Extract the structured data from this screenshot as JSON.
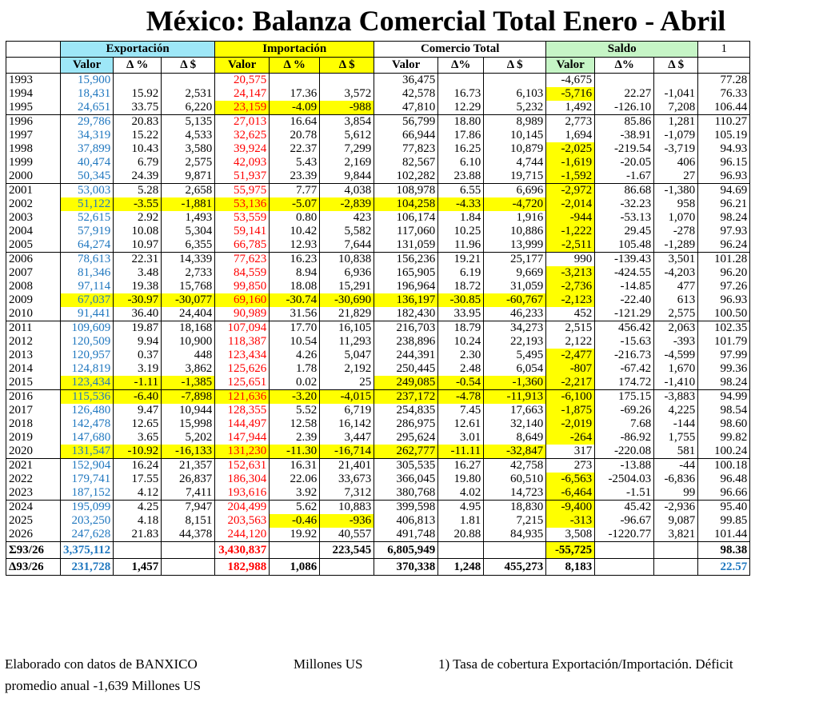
{
  "title": "México: Balanza Comercial Total Enero - Abril",
  "headers": {
    "group_exp": "Exportación",
    "group_imp": "Importación",
    "group_com": "Comercio Total",
    "group_sal": "Saldo",
    "note_col": "1",
    "sub": [
      "Valor",
      "Δ %",
      "Δ $",
      "Valor",
      "Δ %",
      "Δ $",
      "Valor",
      "Δ%",
      "Δ $",
      "Valor",
      "Δ%",
      "Δ $"
    ]
  },
  "rows": [
    [
      "1993",
      "15,900",
      "",
      "",
      "20,575",
      "",
      "",
      "36,475",
      "",
      "",
      "-4,675",
      "",
      "",
      "77.28"
    ],
    [
      "1994",
      "18,431",
      "15.92",
      "2,531",
      "24,147",
      "17.36",
      "3,572",
      "42,578",
      "16.73",
      "6,103",
      "-5,716",
      "22.27",
      "-1,041",
      "76.33"
    ],
    [
      "1995",
      "24,651",
      "33.75",
      "6,220",
      "23,159",
      "-4.09",
      "-988",
      "47,810",
      "12.29",
      "5,232",
      "1,492",
      "-126.10",
      "7,208",
      "106.44"
    ],
    [
      "1996",
      "29,786",
      "20.83",
      "5,135",
      "27,013",
      "16.64",
      "3,854",
      "56,799",
      "18.80",
      "8,989",
      "2,773",
      "85.86",
      "1,281",
      "110.27"
    ],
    [
      "1997",
      "34,319",
      "15.22",
      "4,533",
      "32,625",
      "20.78",
      "5,612",
      "66,944",
      "17.86",
      "10,145",
      "1,694",
      "-38.91",
      "-1,079",
      "105.19"
    ],
    [
      "1998",
      "37,899",
      "10.43",
      "3,580",
      "39,924",
      "22.37",
      "7,299",
      "77,823",
      "16.25",
      "10,879",
      "-2,025",
      "-219.54",
      "-3,719",
      "94.93"
    ],
    [
      "1999",
      "40,474",
      "6.79",
      "2,575",
      "42,093",
      "5.43",
      "2,169",
      "82,567",
      "6.10",
      "4,744",
      "-1,619",
      "-20.05",
      "406",
      "96.15"
    ],
    [
      "2000",
      "50,345",
      "24.39",
      "9,871",
      "51,937",
      "23.39",
      "9,844",
      "102,282",
      "23.88",
      "19,715",
      "-1,592",
      "-1.67",
      "27",
      "96.93"
    ],
    [
      "2001",
      "53,003",
      "5.28",
      "2,658",
      "55,975",
      "7.77",
      "4,038",
      "108,978",
      "6.55",
      "6,696",
      "-2,972",
      "86.68",
      "-1,380",
      "94.69"
    ],
    [
      "2002",
      "51,122",
      "-3.55",
      "-1,881",
      "53,136",
      "-5.07",
      "-2,839",
      "104,258",
      "-4.33",
      "-4,720",
      "-2,014",
      "-32.23",
      "958",
      "96.21"
    ],
    [
      "2003",
      "52,615",
      "2.92",
      "1,493",
      "53,559",
      "0.80",
      "423",
      "106,174",
      "1.84",
      "1,916",
      "-944",
      "-53.13",
      "1,070",
      "98.24"
    ],
    [
      "2004",
      "57,919",
      "10.08",
      "5,304",
      "59,141",
      "10.42",
      "5,582",
      "117,060",
      "10.25",
      "10,886",
      "-1,222",
      "29.45",
      "-278",
      "97.93"
    ],
    [
      "2005",
      "64,274",
      "10.97",
      "6,355",
      "66,785",
      "12.93",
      "7,644",
      "131,059",
      "11.96",
      "13,999",
      "-2,511",
      "105.48",
      "-1,289",
      "96.24"
    ],
    [
      "2006",
      "78,613",
      "22.31",
      "14,339",
      "77,623",
      "16.23",
      "10,838",
      "156,236",
      "19.21",
      "25,177",
      "990",
      "-139.43",
      "3,501",
      "101.28"
    ],
    [
      "2007",
      "81,346",
      "3.48",
      "2,733",
      "84,559",
      "8.94",
      "6,936",
      "165,905",
      "6.19",
      "9,669",
      "-3,213",
      "-424.55",
      "-4,203",
      "96.20"
    ],
    [
      "2008",
      "97,114",
      "19.38",
      "15,768",
      "99,850",
      "18.08",
      "15,291",
      "196,964",
      "18.72",
      "31,059",
      "-2,736",
      "-14.85",
      "477",
      "97.26"
    ],
    [
      "2009",
      "67,037",
      "-30.97",
      "-30,077",
      "69,160",
      "-30.74",
      "-30,690",
      "136,197",
      "-30.85",
      "-60,767",
      "-2,123",
      "-22.40",
      "613",
      "96.93"
    ],
    [
      "2010",
      "91,441",
      "36.40",
      "24,404",
      "90,989",
      "31.56",
      "21,829",
      "182,430",
      "33.95",
      "46,233",
      "452",
      "-121.29",
      "2,575",
      "100.50"
    ],
    [
      "2011",
      "109,609",
      "19.87",
      "18,168",
      "107,094",
      "17.70",
      "16,105",
      "216,703",
      "18.79",
      "34,273",
      "2,515",
      "456.42",
      "2,063",
      "102.35"
    ],
    [
      "2012",
      "120,509",
      "9.94",
      "10,900",
      "118,387",
      "10.54",
      "11,293",
      "238,896",
      "10.24",
      "22,193",
      "2,122",
      "-15.63",
      "-393",
      "101.79"
    ],
    [
      "2013",
      "120,957",
      "0.37",
      "448",
      "123,434",
      "4.26",
      "5,047",
      "244,391",
      "2.30",
      "5,495",
      "-2,477",
      "-216.73",
      "-4,599",
      "97.99"
    ],
    [
      "2014",
      "124,819",
      "3.19",
      "3,862",
      "125,626",
      "1.78",
      "2,192",
      "250,445",
      "2.48",
      "6,054",
      "-807",
      "-67.42",
      "1,670",
      "99.36"
    ],
    [
      "2015",
      "123,434",
      "-1.11",
      "-1,385",
      "125,651",
      "0.02",
      "25",
      "249,085",
      "-0.54",
      "-1,360",
      "-2,217",
      "174.72",
      "-1,410",
      "98.24"
    ],
    [
      "2016",
      "115,536",
      "-6.40",
      "-7,898",
      "121,636",
      "-3.20",
      "-4,015",
      "237,172",
      "-4.78",
      "-11,913",
      "-6,100",
      "175.15",
      "-3,883",
      "94.99"
    ],
    [
      "2017",
      "126,480",
      "9.47",
      "10,944",
      "128,355",
      "5.52",
      "6,719",
      "254,835",
      "7.45",
      "17,663",
      "-1,875",
      "-69.26",
      "4,225",
      "98.54"
    ],
    [
      "2018",
      "142,478",
      "12.65",
      "15,998",
      "144,497",
      "12.58",
      "16,142",
      "286,975",
      "12.61",
      "32,140",
      "-2,019",
      "7.68",
      "-144",
      "98.60"
    ],
    [
      "2019",
      "147,680",
      "3.65",
      "5,202",
      "147,944",
      "2.39",
      "3,447",
      "295,624",
      "3.01",
      "8,649",
      "-264",
      "-86.92",
      "1,755",
      "99.82"
    ],
    [
      "2020",
      "131,547",
      "-10.92",
      "-16,133",
      "131,230",
      "-11.30",
      "-16,714",
      "262,777",
      "-11.11",
      "-32,847",
      "317",
      "-220.08",
      "581",
      "100.24"
    ],
    [
      "2021",
      "152,904",
      "16.24",
      "21,357",
      "152,631",
      "16.31",
      "21,401",
      "305,535",
      "16.27",
      "42,758",
      "273",
      "-13.88",
      "-44",
      "100.18"
    ],
    [
      "2022",
      "179,741",
      "17.55",
      "26,837",
      "186,304",
      "22.06",
      "33,673",
      "366,045",
      "19.80",
      "60,510",
      "-6,563",
      "-2504.03",
      "-6,836",
      "96.48"
    ],
    [
      "2023",
      "187,152",
      "4.12",
      "7,411",
      "193,616",
      "3.92",
      "7,312",
      "380,768",
      "4.02",
      "14,723",
      "-6,464",
      "-1.51",
      "99",
      "96.66"
    ],
    [
      "2024",
      "195,099",
      "4.25",
      "7,947",
      "204,499",
      "5.62",
      "10,883",
      "399,598",
      "4.95",
      "18,830",
      "-9,400",
      "45.42",
      "-2,936",
      "95.40"
    ],
    [
      "2025",
      "203,250",
      "4.18",
      "8,151",
      "203,563",
      "-0.46",
      "-936",
      "406,813",
      "1.81",
      "7,215",
      "-313",
      "-96.67",
      "9,087",
      "99.85"
    ],
    [
      "2026",
      "247,628",
      "21.83",
      "44,378",
      "244,120",
      "19.92",
      "40,557",
      "491,748",
      "20.88",
      "84,935",
      "3,508",
      "-1220.77",
      "3,821",
      "101.44"
    ]
  ],
  "highlights": [
    [
      1,
      10
    ],
    [
      2,
      4
    ],
    [
      2,
      5
    ],
    [
      2,
      6
    ],
    [
      5,
      10
    ],
    [
      6,
      10
    ],
    [
      7,
      10
    ],
    [
      8,
      10
    ],
    [
      9,
      1
    ],
    [
      9,
      2
    ],
    [
      9,
      3
    ],
    [
      9,
      4
    ],
    [
      9,
      5
    ],
    [
      9,
      6
    ],
    [
      9,
      7
    ],
    [
      9,
      8
    ],
    [
      9,
      9
    ],
    [
      9,
      10
    ],
    [
      10,
      10
    ],
    [
      11,
      10
    ],
    [
      12,
      10
    ],
    [
      14,
      10
    ],
    [
      15,
      10
    ],
    [
      16,
      1
    ],
    [
      16,
      2
    ],
    [
      16,
      3
    ],
    [
      16,
      4
    ],
    [
      16,
      5
    ],
    [
      16,
      6
    ],
    [
      16,
      7
    ],
    [
      16,
      8
    ],
    [
      16,
      9
    ],
    [
      16,
      10
    ],
    [
      20,
      10
    ],
    [
      21,
      10
    ],
    [
      22,
      1
    ],
    [
      22,
      2
    ],
    [
      22,
      3
    ],
    [
      22,
      7
    ],
    [
      22,
      8
    ],
    [
      22,
      9
    ],
    [
      22,
      10
    ],
    [
      23,
      1
    ],
    [
      23,
      2
    ],
    [
      23,
      3
    ],
    [
      23,
      4
    ],
    [
      23,
      5
    ],
    [
      23,
      6
    ],
    [
      23,
      7
    ],
    [
      23,
      8
    ],
    [
      23,
      9
    ],
    [
      23,
      10
    ],
    [
      24,
      10
    ],
    [
      25,
      10
    ],
    [
      26,
      10
    ],
    [
      27,
      1
    ],
    [
      27,
      2
    ],
    [
      27,
      3
    ],
    [
      27,
      4
    ],
    [
      27,
      5
    ],
    [
      27,
      6
    ],
    [
      27,
      7
    ],
    [
      27,
      8
    ],
    [
      27,
      9
    ],
    [
      29,
      10
    ],
    [
      30,
      10
    ],
    [
      31,
      10
    ],
    [
      32,
      10
    ],
    [
      32,
      5
    ],
    [
      32,
      6
    ]
  ],
  "group_ends": [
    2,
    7,
    12,
    17,
    22,
    27,
    30,
    33
  ],
  "sum_rows": [
    [
      "Σ93/26",
      "3,375,112",
      "",
      "",
      "3,430,837",
      "",
      "223,545",
      "6,805,949",
      "",
      "",
      "-55,725",
      "",
      "",
      "98.38"
    ],
    [
      "Δ93/26",
      "231,728",
      "1,457",
      "",
      "182,988",
      "1,086",
      "",
      "370,338",
      "1,248",
      "455,273",
      "8,183",
      "",
      "",
      "22.57"
    ]
  ],
  "footer": {
    "source": "Elaborado con datos de BANXICO",
    "units": "Millones US",
    "note": "1) Tasa de cobertura Exportación/Importación. Déficit",
    "note2": "promedio anual -1,639 Millones US"
  },
  "colors": {
    "export": "#1f77bf",
    "import": "#ff0000",
    "highlight": "#ffff00",
    "exp_header": "#9ee7f7",
    "sal_header": "#c6f5c6"
  }
}
